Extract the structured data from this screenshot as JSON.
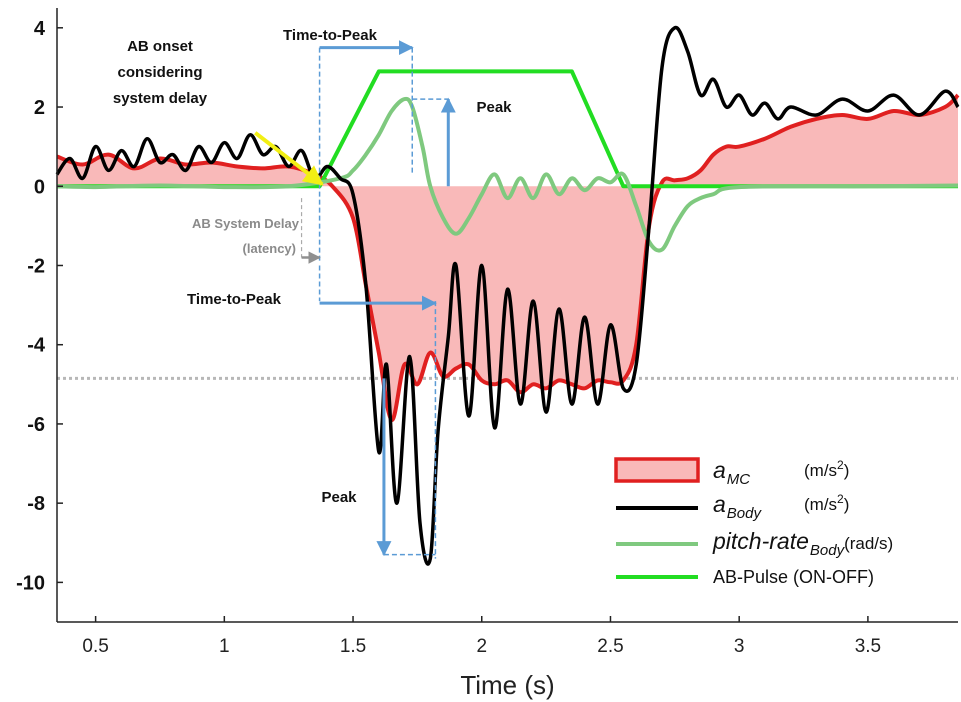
{
  "chart_data": {
    "type": "line",
    "xlabel": "Time (s)",
    "ylabel": "",
    "xlim": [
      0.35,
      3.85
    ],
    "ylim": [
      -11,
      4.5
    ],
    "xticks": [
      0.5,
      1,
      1.5,
      2,
      2.5,
      3,
      3.5
    ],
    "xtick_labels": [
      "0.5",
      "1",
      "1.5",
      "2",
      "2.5",
      "3",
      "3.5"
    ],
    "yticks": [
      4,
      2,
      0,
      -2,
      -4,
      -6,
      -8,
      -10
    ],
    "ytick_labels": [
      "4",
      "2",
      "0",
      "-2",
      "-4",
      "-6",
      "-8",
      "-10"
    ],
    "grid": false,
    "legend_position": "bottom-right",
    "reference_line_y": -4.85,
    "series": [
      {
        "name": "a_MC (m/s²)",
        "color": "#e02020",
        "fill": "#f9b9b9",
        "x": [
          0.35,
          0.45,
          0.55,
          0.65,
          0.75,
          0.85,
          0.95,
          1.05,
          1.15,
          1.25,
          1.35,
          1.42,
          1.5,
          1.55,
          1.6,
          1.65,
          1.7,
          1.75,
          1.8,
          1.85,
          1.9,
          1.95,
          2.0,
          2.05,
          2.1,
          2.15,
          2.2,
          2.25,
          2.3,
          2.35,
          2.4,
          2.45,
          2.5,
          2.55,
          2.6,
          2.65,
          2.7,
          2.75,
          2.8,
          2.85,
          2.9,
          2.95,
          3.0,
          3.1,
          3.2,
          3.3,
          3.4,
          3.5,
          3.6,
          3.7,
          3.8,
          3.85
        ],
        "y": [
          0.75,
          0.55,
          0.8,
          0.45,
          0.7,
          0.55,
          0.6,
          0.5,
          0.45,
          0.5,
          0.3,
          0.0,
          -0.8,
          -2.5,
          -4.2,
          -5.9,
          -4.5,
          -5.0,
          -4.2,
          -4.8,
          -4.6,
          -4.5,
          -4.9,
          -5.0,
          -4.9,
          -5.2,
          -5.0,
          -5.1,
          -4.9,
          -5.0,
          -5.1,
          -4.9,
          -4.95,
          -4.9,
          -4.0,
          -1.0,
          0.1,
          0.15,
          0.2,
          0.4,
          0.8,
          1.0,
          1.0,
          1.2,
          1.5,
          1.7,
          1.8,
          1.7,
          1.9,
          1.8,
          2.0,
          2.3
        ]
      },
      {
        "name": "a_Body (m/s²)",
        "color": "#000000",
        "x": [
          0.35,
          0.4,
          0.45,
          0.5,
          0.55,
          0.6,
          0.65,
          0.7,
          0.75,
          0.8,
          0.85,
          0.9,
          0.95,
          1.0,
          1.05,
          1.1,
          1.15,
          1.2,
          1.25,
          1.3,
          1.35,
          1.4,
          1.45,
          1.5,
          1.55,
          1.6,
          1.63,
          1.67,
          1.72,
          1.76,
          1.8,
          1.83,
          1.87,
          1.9,
          1.95,
          2.0,
          2.05,
          2.1,
          2.15,
          2.2,
          2.25,
          2.3,
          2.35,
          2.4,
          2.45,
          2.5,
          2.55,
          2.6,
          2.65,
          2.7,
          2.75,
          2.8,
          2.85,
          2.9,
          2.95,
          3.0,
          3.05,
          3.1,
          3.15,
          3.2,
          3.3,
          3.4,
          3.5,
          3.6,
          3.7,
          3.8,
          3.85
        ],
        "y": [
          0.3,
          0.7,
          0.2,
          1.0,
          0.4,
          0.9,
          0.5,
          1.2,
          0.6,
          0.8,
          0.4,
          1.0,
          0.6,
          1.1,
          0.7,
          1.3,
          0.8,
          1.0,
          0.5,
          0.9,
          0.2,
          0.5,
          0.2,
          -0.2,
          -2.5,
          -6.7,
          -4.5,
          -8.0,
          -4.3,
          -8.5,
          -9.4,
          -6.2,
          -3.8,
          -2.0,
          -5.8,
          -2.0,
          -6.1,
          -2.6,
          -5.5,
          -2.9,
          -5.7,
          -3.1,
          -5.5,
          -3.3,
          -5.5,
          -3.5,
          -5.1,
          -4.5,
          -1.0,
          3.0,
          4.0,
          3.4,
          2.3,
          2.7,
          2.0,
          2.3,
          1.8,
          2.1,
          1.7,
          2.0,
          1.8,
          2.2,
          1.9,
          2.3,
          1.8,
          2.4,
          2.0
        ]
      },
      {
        "name": "pitch-rate_Body (rad/s)",
        "color": "#7fc97f",
        "x": [
          0.35,
          0.5,
          0.75,
          1.0,
          1.25,
          1.45,
          1.5,
          1.55,
          1.6,
          1.65,
          1.7,
          1.73,
          1.77,
          1.8,
          1.85,
          1.9,
          1.95,
          2.0,
          2.05,
          2.1,
          2.15,
          2.2,
          2.25,
          2.3,
          2.35,
          2.4,
          2.45,
          2.5,
          2.55,
          2.6,
          2.65,
          2.7,
          2.75,
          2.8,
          2.85,
          2.9,
          3.0,
          3.5,
          3.85
        ],
        "y": [
          0.0,
          -0.02,
          0.02,
          -0.02,
          0.0,
          0.2,
          0.4,
          0.8,
          1.3,
          1.9,
          2.2,
          2.0,
          1.0,
          0.0,
          -0.8,
          -1.2,
          -0.8,
          -0.2,
          0.3,
          -0.3,
          0.2,
          -0.3,
          0.3,
          -0.2,
          0.2,
          -0.1,
          0.2,
          0.1,
          0.3,
          -0.5,
          -1.4,
          -1.6,
          -1.0,
          -0.5,
          -0.3,
          -0.2,
          -0.02,
          0.0,
          0.02
        ]
      },
      {
        "name": "AB-Pulse (ON-OFF)",
        "color": "#22dd22",
        "x": [
          0.35,
          1.37,
          1.6,
          2.35,
          2.55,
          3.85
        ],
        "y": [
          0,
          0,
          2.9,
          2.9,
          0,
          0
        ]
      }
    ],
    "legend": [
      {
        "main": "a",
        "sub": "MC",
        "unit": "(m/s",
        "unit_sup": "2",
        "unit_end": ")"
      },
      {
        "main": "a",
        "sub": "Body",
        "unit": "(m/s",
        "unit_sup": "2",
        "unit_end": ")"
      },
      {
        "main": "pitch-rate",
        "sub": "Body",
        "unit": "(rad/s)"
      },
      {
        "label": "AB-Pulse (ON-OFF)"
      }
    ],
    "annotations": {
      "onset_line1": "AB onset",
      "onset_line2": "considering",
      "onset_line3": "system delay",
      "ttp_top": "Time-to-Peak",
      "ttp_mid": "Time-to-Peak",
      "peak_top": "Peak",
      "peak_bottom": "Peak",
      "delay_line1": "AB System Delay",
      "delay_line2": "(latency)"
    },
    "colors": {
      "arrow": "#5b9bd5",
      "grey_arrow": "#909090",
      "onset_arrow": "#f2ef14",
      "ref_line": "#b8b8b8"
    }
  }
}
